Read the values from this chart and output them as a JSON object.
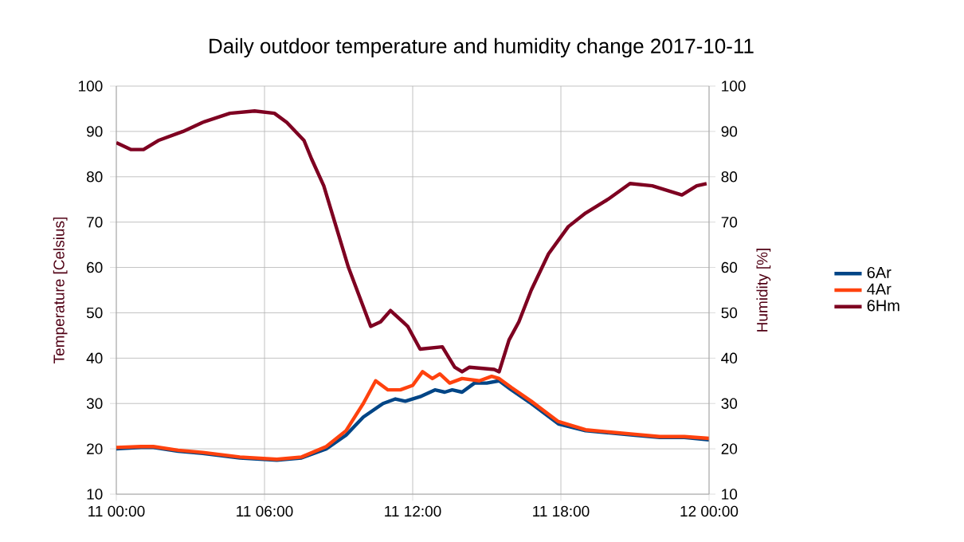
{
  "chart_data": {
    "type": "line",
    "title": "Daily outdoor temperature and humidity change 2017-10-11",
    "ylabel": "Temperature [Celsius]",
    "y2label": "Humidity [%]",
    "xlim": [
      "2017-10-11T00:00",
      "2017-10-12T00:00"
    ],
    "xticks": [
      {
        "value": "2017-10-11T00:00",
        "label": "11 00:00"
      },
      {
        "value": "2017-10-11T06:00",
        "label": "11 06:00"
      },
      {
        "value": "2017-10-11T12:00",
        "label": "11 12:00"
      },
      {
        "value": "2017-10-11T18:00",
        "label": "11 18:00"
      },
      {
        "value": "2017-10-12T00:00",
        "label": "12 00:00"
      }
    ],
    "ylim": [
      10,
      100
    ],
    "yticks": [
      10,
      20,
      30,
      40,
      50,
      60,
      70,
      80,
      90,
      100
    ],
    "y2lim": [
      10,
      100
    ],
    "y2ticks": [
      10,
      20,
      30,
      40,
      50,
      60,
      70,
      80,
      90,
      100
    ],
    "grid": true,
    "legend": "right",
    "line_style": "solid",
    "marker": "none",
    "series": [
      {
        "name": "6Ar",
        "color": "#004586",
        "x": [
          "2017-10-11T00:00",
          "2017-10-11T01:00",
          "2017-10-11T01:30",
          "2017-10-11T02:30",
          "2017-10-11T03:30",
          "2017-10-11T05:00",
          "2017-10-11T06:30",
          "2017-10-11T07:30",
          "2017-10-11T08:30",
          "2017-10-11T09:18",
          "2017-10-11T10:00",
          "2017-10-11T10:48",
          "2017-10-11T11:18",
          "2017-10-11T11:42",
          "2017-10-11T12:18",
          "2017-10-11T12:54",
          "2017-10-11T13:18",
          "2017-10-11T13:36",
          "2017-10-11T14:00",
          "2017-10-11T14:30",
          "2017-10-11T15:00",
          "2017-10-11T15:30",
          "2017-10-11T16:00",
          "2017-10-11T16:48",
          "2017-10-11T17:54",
          "2017-10-11T19:00",
          "2017-10-11T20:00",
          "2017-10-11T21:00",
          "2017-10-11T22:00",
          "2017-10-11T23:00",
          "2017-10-12T00:00"
        ],
        "values": [
          20,
          20.3,
          20.3,
          19.5,
          19,
          18,
          17.5,
          18,
          20,
          23,
          27,
          30,
          31,
          30.5,
          31.5,
          33,
          32.5,
          33,
          32.5,
          34.5,
          34.5,
          35,
          33,
          30,
          25.5,
          24,
          23.5,
          23,
          22.5,
          22.5,
          22
        ]
      },
      {
        "name": "4Ar",
        "color": "#ff420e",
        "x": [
          "2017-10-11T00:00",
          "2017-10-11T01:00",
          "2017-10-11T01:30",
          "2017-10-11T02:30",
          "2017-10-11T03:30",
          "2017-10-11T05:00",
          "2017-10-11T06:30",
          "2017-10-11T07:30",
          "2017-10-11T08:30",
          "2017-10-11T09:18",
          "2017-10-11T10:00",
          "2017-10-11T10:30",
          "2017-10-11T11:00",
          "2017-10-11T11:30",
          "2017-10-11T12:00",
          "2017-10-11T12:24",
          "2017-10-11T12:48",
          "2017-10-11T13:06",
          "2017-10-11T13:30",
          "2017-10-11T14:00",
          "2017-10-11T14:42",
          "2017-10-11T15:12",
          "2017-10-11T15:30",
          "2017-10-11T16:00",
          "2017-10-11T16:48",
          "2017-10-11T17:54",
          "2017-10-11T19:00",
          "2017-10-11T20:00",
          "2017-10-11T21:00",
          "2017-10-11T22:00",
          "2017-10-11T23:00",
          "2017-10-12T00:00"
        ],
        "values": [
          20.3,
          20.5,
          20.5,
          19.7,
          19.2,
          18.2,
          17.7,
          18.2,
          20.5,
          24,
          30,
          35,
          33,
          33,
          34,
          37,
          35.5,
          36.5,
          34.5,
          35.5,
          35,
          36,
          35.5,
          33.5,
          30.5,
          26,
          24.2,
          23.7,
          23.2,
          22.7,
          22.7,
          22.3
        ]
      },
      {
        "name": "6Hm",
        "color": "#7e0021",
        "axis": "y2",
        "x": [
          "2017-10-11T00:00",
          "2017-10-11T00:36",
          "2017-10-11T01:06",
          "2017-10-11T01:42",
          "2017-10-11T02:42",
          "2017-10-11T03:30",
          "2017-10-11T04:36",
          "2017-10-11T05:36",
          "2017-10-11T06:24",
          "2017-10-11T06:54",
          "2017-10-11T07:36",
          "2017-10-11T07:54",
          "2017-10-11T08:24",
          "2017-10-11T09:24",
          "2017-10-11T10:18",
          "2017-10-11T10:42",
          "2017-10-11T11:06",
          "2017-10-11T11:48",
          "2017-10-11T12:18",
          "2017-10-11T13:12",
          "2017-10-11T13:42",
          "2017-10-11T14:00",
          "2017-10-11T14:18",
          "2017-10-11T15:18",
          "2017-10-11T15:30",
          "2017-10-11T15:54",
          "2017-10-11T16:18",
          "2017-10-11T16:48",
          "2017-10-11T17:30",
          "2017-10-11T18:18",
          "2017-10-11T19:00",
          "2017-10-11T19:54",
          "2017-10-11T20:48",
          "2017-10-11T21:42",
          "2017-10-11T22:54",
          "2017-10-11T23:30",
          "2017-10-11T23:54"
        ],
        "values": [
          87.5,
          86,
          86,
          88,
          90,
          92,
          94,
          94.5,
          94,
          92,
          88,
          84,
          78,
          60,
          47,
          48,
          50.5,
          47,
          42,
          42.5,
          38,
          37,
          38,
          37.5,
          37,
          44,
          48,
          55,
          63,
          69,
          72,
          75,
          78.5,
          78,
          76,
          78,
          78.5
        ]
      }
    ]
  }
}
